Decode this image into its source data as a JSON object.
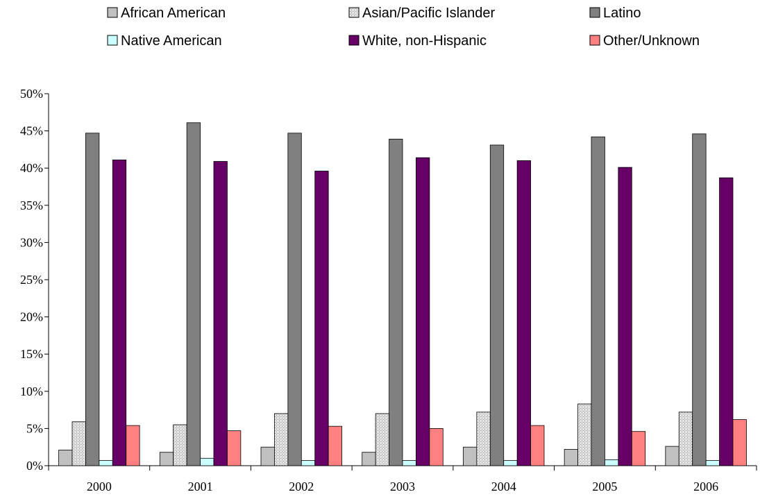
{
  "chart_data": {
    "type": "bar",
    "title": "",
    "xlabel": "",
    "ylabel": "",
    "categories": [
      "2000",
      "2001",
      "2002",
      "2003",
      "2004",
      "2005",
      "2006"
    ],
    "ylim": [
      0,
      50
    ],
    "yticks": [
      "0%",
      "5%",
      "10%",
      "15%",
      "20%",
      "25%",
      "30%",
      "35%",
      "40%",
      "45%",
      "50%"
    ],
    "grid": false,
    "legend_position": "top",
    "series": [
      {
        "name": "African American",
        "color": "#c0c0c0",
        "pattern": "solid",
        "values": [
          2.1,
          1.8,
          2.5,
          1.8,
          2.5,
          2.2,
          2.6
        ]
      },
      {
        "name": "Asian/Pacific Islander",
        "color": "#d0d0d0",
        "pattern": "stipple",
        "values": [
          5.9,
          5.5,
          7.0,
          7.0,
          7.2,
          8.3,
          7.2
        ]
      },
      {
        "name": "Latino",
        "color": "#808080",
        "pattern": "solid",
        "values": [
          44.7,
          46.1,
          44.7,
          43.9,
          43.1,
          44.2,
          44.6
        ]
      },
      {
        "name": "Native American",
        "color": "#ccffff",
        "pattern": "solid",
        "values": [
          0.7,
          1.0,
          0.7,
          0.7,
          0.7,
          0.8,
          0.7
        ]
      },
      {
        "name": "White, non-Hispanic",
        "color": "#660066",
        "pattern": "solid",
        "values": [
          41.1,
          40.9,
          39.6,
          41.4,
          41.0,
          40.1,
          38.7
        ]
      },
      {
        "name": "Other/Unknown",
        "color": "#ff8080",
        "pattern": "solid",
        "values": [
          5.4,
          4.7,
          5.3,
          5.0,
          5.4,
          4.6,
          6.2
        ]
      }
    ]
  }
}
